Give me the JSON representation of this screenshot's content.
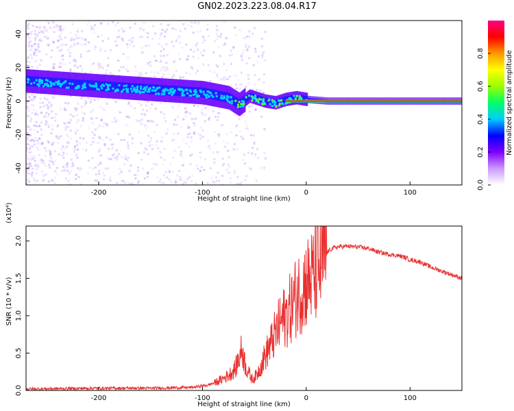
{
  "title": "GN02.2023.223.08.04.R17",
  "chart_data": [
    {
      "type": "heatmap",
      "xlabel": "Height of straight line (km)",
      "ylabel": "Frequency (Hz)",
      "xlim": [
        -270,
        150
      ],
      "ylim": [
        -50,
        48
      ],
      "xticks": [
        -200,
        -100,
        0,
        100
      ],
      "yticks": [
        -40,
        -20,
        0,
        20,
        40
      ],
      "x_tick_labels": [
        "-200",
        "-100",
        "0",
        "100"
      ],
      "y_tick_labels": [
        "-40",
        "-20",
        "0",
        "20",
        "40"
      ],
      "colorbar": {
        "label": "Normalized spectral amplitude",
        "range": [
          0,
          1
        ],
        "ticks": [
          0.0,
          0.2,
          0.4,
          0.6,
          0.8
        ],
        "tick_labels": [
          "0.0",
          "0.2",
          "0.4",
          "0.6",
          "0.8"
        ],
        "colors": [
          "#ffffff",
          "#cc99ff",
          "#7f00ff",
          "#0000ff",
          "#00ccff",
          "#00ff66",
          "#99ff00",
          "#ffff00",
          "#ff9900",
          "#ff0000",
          "#ff0080"
        ]
      },
      "ridge": [
        {
          "x": -270,
          "freq": 12
        },
        {
          "x": -200,
          "freq": 9
        },
        {
          "x": -150,
          "freq": 7
        },
        {
          "x": -100,
          "freq": 5
        },
        {
          "x": -75,
          "freq": 2
        },
        {
          "x": -65,
          "freq": -2
        },
        {
          "x": -55,
          "freq": 3
        },
        {
          "x": -40,
          "freq": 0
        },
        {
          "x": -30,
          "freq": -1
        },
        {
          "x": -20,
          "freq": 1
        },
        {
          "x": -10,
          "freq": 2
        },
        {
          "x": 0,
          "freq": 1
        },
        {
          "x": 20,
          "freq": 0
        },
        {
          "x": 150,
          "freq": 0
        }
      ]
    },
    {
      "type": "line",
      "xlabel": "Height of straight line (km)",
      "ylabel": "SNR (10 * v/v)",
      "y_multiplier": "(x10⁴)",
      "xlim": [
        -270,
        150
      ],
      "ylim": [
        0,
        2.2
      ],
      "xticks": [
        -200,
        -100,
        0,
        100
      ],
      "yticks": [
        0.0,
        0.5,
        1.0,
        1.5,
        2.0
      ],
      "x_tick_labels": [
        "-200",
        "-100",
        "0",
        "100"
      ],
      "y_tick_labels": [
        "0.0",
        "0.5",
        "1.0",
        "1.5",
        "2.0"
      ],
      "color": "#e8302f",
      "series": [
        {
          "x": [
            -270,
            -200,
            -150,
            -110,
            -95,
            -85,
            -75,
            -68,
            -62,
            -58,
            -52,
            -48,
            -40,
            -35,
            -30,
            -25,
            -20,
            -15,
            -10,
            -5,
            0,
            5,
            10,
            15,
            20,
            25,
            30,
            40,
            50,
            60,
            70,
            80,
            90,
            95,
            100,
            110,
            120,
            130,
            140,
            150
          ],
          "y": [
            0.02,
            0.03,
            0.03,
            0.04,
            0.07,
            0.12,
            0.2,
            0.3,
            0.55,
            0.3,
            0.15,
            0.2,
            0.45,
            0.6,
            0.75,
            0.9,
            1.0,
            1.1,
            1.25,
            1.35,
            1.45,
            1.5,
            1.6,
            1.72,
            1.85,
            1.9,
            1.92,
            1.93,
            1.92,
            1.9,
            1.85,
            1.82,
            1.8,
            1.78,
            1.75,
            1.72,
            1.65,
            1.6,
            1.55,
            1.5
          ]
        }
      ]
    }
  ]
}
